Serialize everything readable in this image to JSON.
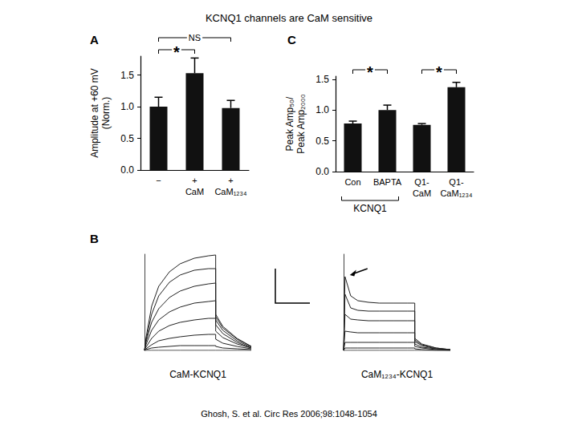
{
  "title": "KCNQ1 channels are CaM sensitive",
  "source": "Ghosh, S. et al. Circ Res 2006;98:1048-1054",
  "chart_data": [
    {
      "type": "bar",
      "panel": "A",
      "categories": [
        "−",
        "+\nCaM",
        "+\nCaM₁₂₃₄"
      ],
      "values": [
        1.0,
        1.53,
        0.98
      ],
      "errors": [
        0.15,
        0.24,
        0.12
      ],
      "color": "#111111",
      "ylabel": "Amplitude at +60 mV\n(Norm.)",
      "ylim": [
        0,
        1.8
      ],
      "yticks": [
        {
          "value": 0,
          "label": "0.0"
        },
        {
          "value": 0.5,
          "label": "0.5"
        },
        {
          "value": 1,
          "label": "1.0"
        },
        {
          "value": 1.5,
          "label": "1.5"
        }
      ],
      "brackets": [
        {
          "from": 0,
          "to": 1,
          "label": "*"
        },
        {
          "from": 0,
          "to": 2,
          "label": "NS"
        }
      ],
      "grid": false
    },
    {
      "type": "bar",
      "panel": "C",
      "categories": [
        "Con",
        "BAPTA",
        "Q1-\nCaM",
        "Q1-\nCaM₁₂₃₄"
      ],
      "values": [
        0.78,
        1.0,
        0.76,
        1.37
      ],
      "errors": [
        0.04,
        0.08,
        0.02,
        0.08
      ],
      "color": "#111111",
      "ylabel": "Peak Amp₅₀/\nPeak Amp₂₀₀₀",
      "ylim": [
        0,
        1.55
      ],
      "yticks": [
        {
          "value": 0,
          "label": "0.0"
        },
        {
          "value": 0.5,
          "label": "0.5"
        },
        {
          "value": 1,
          "label": "1.0"
        },
        {
          "value": 1.5,
          "label": "1.5"
        }
      ],
      "brackets": [
        {
          "from": 0,
          "to": 1,
          "label": "*"
        },
        {
          "from": 2,
          "to": 3,
          "label": "*"
        }
      ],
      "groups": [
        {
          "from": 0,
          "to": 1,
          "label": "KCNQ1"
        }
      ],
      "grid": false
    },
    {
      "type": "line",
      "panel": "B",
      "title": "CaM-KCNQ1",
      "x": [
        0,
        0.02,
        0.1,
        0.2,
        0.35,
        0.5,
        0.7,
        0.9,
        1.0,
        1.0,
        1.1,
        1.3,
        1.5
      ],
      "color": "#222222",
      "series": [
        {
          "values": [
            0,
            0.15,
            0.55,
            0.8,
            0.98,
            1.08,
            1.15,
            1.18,
            1.19,
            0.45,
            0.3,
            0.15,
            0.05
          ]
        },
        {
          "values": [
            0,
            0.12,
            0.45,
            0.68,
            0.85,
            0.94,
            1.0,
            1.02,
            1.02,
            0.42,
            0.28,
            0.14,
            0.05
          ]
        },
        {
          "values": [
            0,
            0.1,
            0.35,
            0.52,
            0.66,
            0.74,
            0.8,
            0.83,
            0.84,
            0.38,
            0.25,
            0.12,
            0.04
          ]
        },
        {
          "values": [
            0,
            0.07,
            0.25,
            0.38,
            0.48,
            0.54,
            0.59,
            0.61,
            0.62,
            0.32,
            0.21,
            0.1,
            0.03
          ]
        },
        {
          "values": [
            0,
            0.04,
            0.15,
            0.24,
            0.31,
            0.35,
            0.38,
            0.4,
            0.4,
            0.24,
            0.16,
            0.08,
            0.03
          ]
        },
        {
          "values": [
            0,
            0.02,
            0.07,
            0.12,
            0.15,
            0.17,
            0.19,
            0.2,
            0.2,
            0.14,
            0.09,
            0.05,
            0.02
          ]
        },
        {
          "values": [
            0,
            0.01,
            0.03,
            0.04,
            0.05,
            0.06,
            0.06,
            0.06,
            0.06,
            0.05,
            0.03,
            0.02,
            0.01
          ]
        },
        {
          "values": [
            0,
            0,
            0,
            0,
            0,
            0,
            0,
            0,
            0,
            0,
            0,
            0,
            0
          ]
        }
      ],
      "xlim": [
        0,
        1.5
      ],
      "ylim": [
        0,
        1.2
      ],
      "tick_labels": false,
      "grid": false
    },
    {
      "type": "line",
      "title": "CaM₁₂₃₄-KCNQ1",
      "x": [
        0,
        0.02,
        0.1,
        0.2,
        0.35,
        0.5,
        0.7,
        0.9,
        1.0,
        1.0,
        1.1,
        1.3,
        1.5
      ],
      "color": "#222222",
      "series": [
        {
          "values": [
            0,
            0.92,
            0.68,
            0.62,
            0.6,
            0.59,
            0.59,
            0.59,
            0.59,
            0.15,
            0.08,
            0.03,
            0.01
          ]
        },
        {
          "values": [
            0,
            0.7,
            0.53,
            0.5,
            0.49,
            0.49,
            0.49,
            0.49,
            0.49,
            0.13,
            0.07,
            0.03,
            0.01
          ]
        },
        {
          "values": [
            0,
            0.45,
            0.39,
            0.38,
            0.37,
            0.37,
            0.37,
            0.37,
            0.37,
            0.11,
            0.06,
            0.02,
            0.01
          ]
        },
        {
          "values": [
            0,
            0.24,
            0.23,
            0.22,
            0.22,
            0.22,
            0.22,
            0.22,
            0.22,
            0.08,
            0.04,
            0.02,
            0.01
          ]
        },
        {
          "values": [
            0,
            0.1,
            0.1,
            0.1,
            0.1,
            0.1,
            0.1,
            0.1,
            0.1,
            0.05,
            0.03,
            0.01,
            0
          ]
        },
        {
          "values": [
            0,
            0.03,
            0.03,
            0.03,
            0.03,
            0.03,
            0.03,
            0.03,
            0.03,
            0.02,
            0.01,
            0,
            0
          ]
        },
        {
          "values": [
            0,
            0,
            0,
            0,
            0,
            0,
            0,
            0,
            0,
            0,
            0,
            0,
            0
          ]
        }
      ],
      "xlim": [
        0,
        1.5
      ],
      "ylim": [
        0,
        1.2
      ],
      "tick_labels": false,
      "grid": false
    }
  ]
}
